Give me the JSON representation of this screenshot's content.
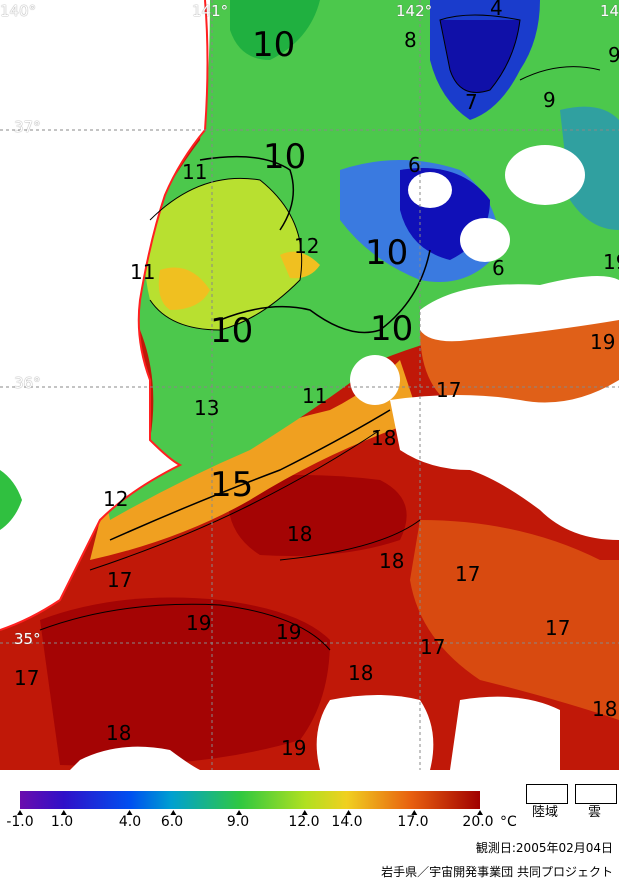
{
  "map": {
    "longitudes": [
      "140°",
      "141°",
      "142°",
      "14"
    ],
    "latitudes": [
      "37°",
      "36°",
      "35°"
    ],
    "contour_labels": [
      "10",
      "10",
      "10",
      "10",
      "10",
      "15",
      "4",
      "8",
      "9",
      "9",
      "7",
      "6",
      "6",
      "11",
      "11",
      "12",
      "11",
      "13",
      "12",
      "17",
      "18",
      "18",
      "18",
      "17",
      "19",
      "19",
      "18",
      "17",
      "17",
      "18",
      "19",
      "17",
      "18",
      "19",
      "17",
      "19"
    ]
  },
  "legend": {
    "ticks": [
      "-1.0",
      "1.0",
      "4.0",
      "6.0",
      "9.0",
      "12.0",
      "14.0",
      "17.0",
      "20.0"
    ],
    "tick_values": [
      -1.0,
      1.0,
      4.0,
      6.0,
      9.0,
      12.0,
      14.0,
      17.0,
      20.0
    ],
    "unit": "°C",
    "land_label": "陸域",
    "cloud_label": "雲",
    "colors": [
      "#6a0dad",
      "#2020c0",
      "#0060ff",
      "#00b0c0",
      "#40d040",
      "#d0e020",
      "#f0b020",
      "#e04010",
      "#a00000"
    ]
  },
  "footer": {
    "observation_date": "観測日:2005年02月04日",
    "credit": "岩手県／宇宙開発事業団 共同プロジェクト"
  }
}
